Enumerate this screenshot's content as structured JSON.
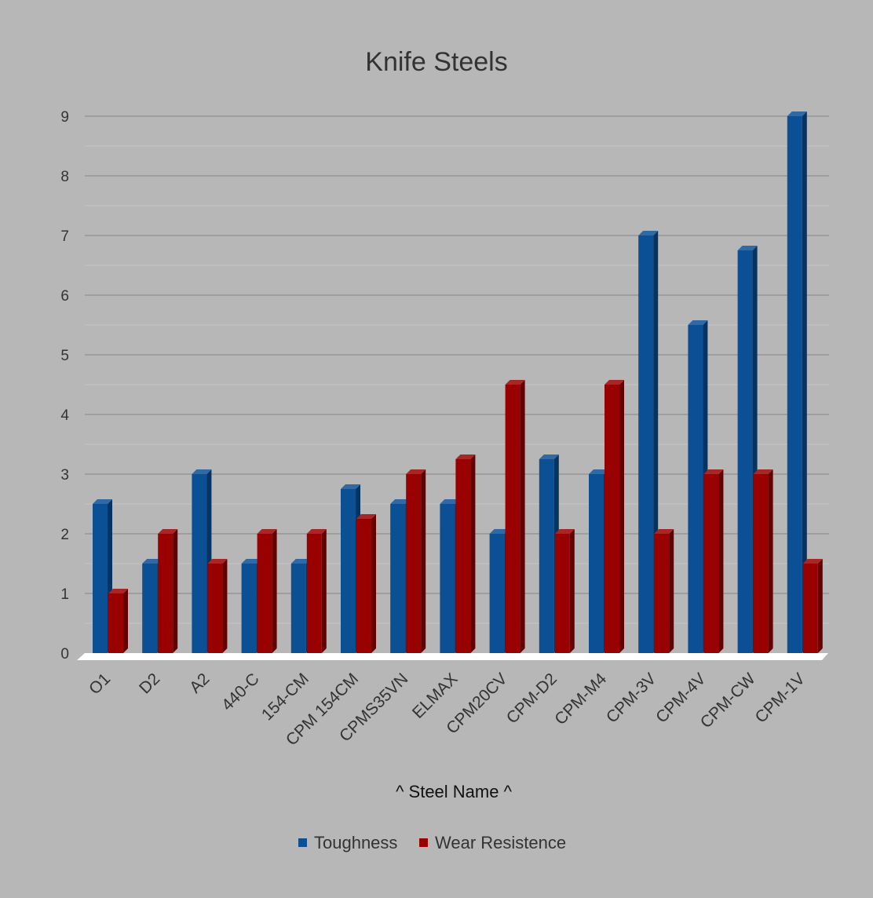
{
  "chart_data": {
    "type": "bar",
    "title": "Knife Steels",
    "xlabel": "^  Steel Name ^",
    "ylabel": "",
    "ylim": [
      0,
      9
    ],
    "yticks": [
      "0",
      "1",
      "2",
      "3",
      "4",
      "5",
      "6",
      "7",
      "8",
      "9"
    ],
    "grid": true,
    "legend_position": "bottom",
    "categories": [
      "O1",
      "D2",
      "A2",
      "440-C",
      "154-CM",
      "CPM 154CM",
      "CPMS35VN",
      "ELMAX",
      "CPM20CV",
      "CPM-D2",
      "CPM-M4",
      "CPM-3V",
      "CPM-4V",
      "CPM-CW",
      "CPM-1V"
    ],
    "series": [
      {
        "name": "Toughness",
        "color": "#0b4f94",
        "values": [
          2.5,
          1.5,
          3,
          1.5,
          1.5,
          2.75,
          2.5,
          2.5,
          2,
          3.25,
          3,
          7,
          5.5,
          6.75,
          9
        ]
      },
      {
        "name": "Wear Resistence",
        "color": "#990000",
        "values": [
          1,
          2,
          1.5,
          2,
          2,
          2.25,
          3,
          3.25,
          4.5,
          2,
          4.5,
          2,
          3,
          3,
          1.5
        ]
      }
    ]
  }
}
